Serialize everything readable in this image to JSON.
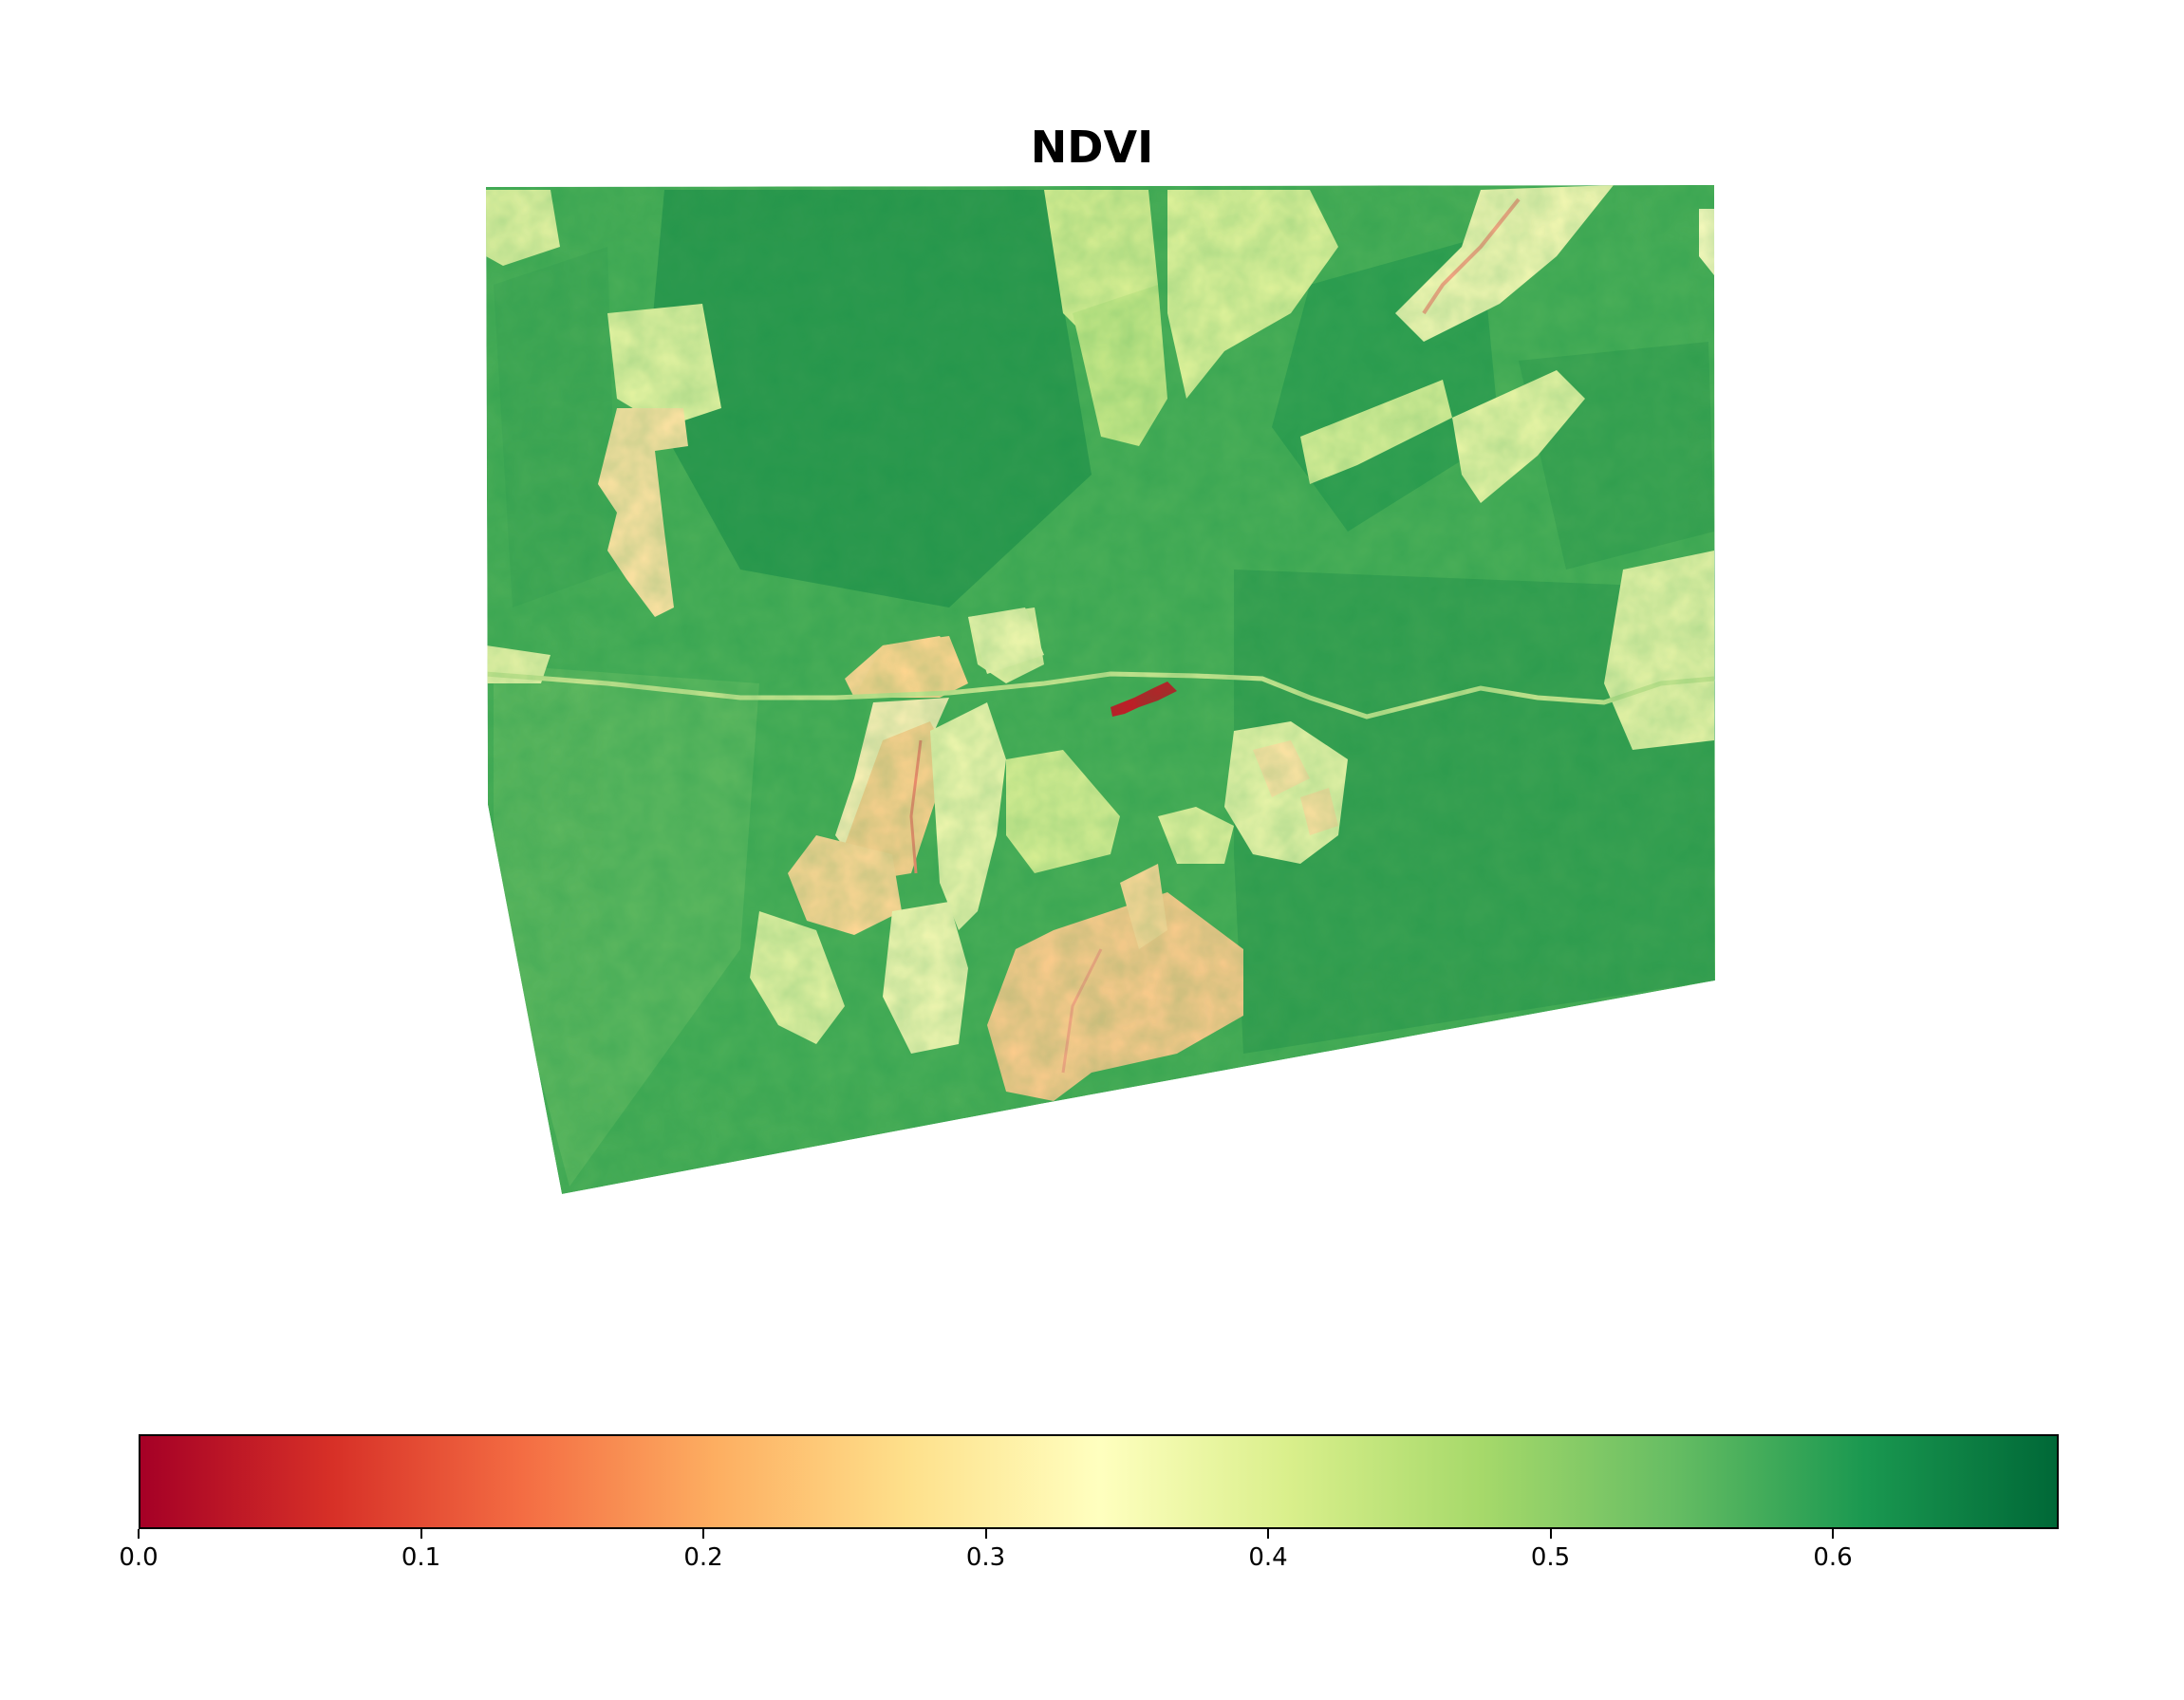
{
  "title": "NDVI",
  "colormap": {
    "name": "RdYlGn",
    "stops": [
      "#a50026",
      "#d73027",
      "#f46d43",
      "#fdae61",
      "#fee08b",
      "#ffffbf",
      "#d9ef8b",
      "#a6d96a",
      "#66bd63",
      "#1a9850",
      "#006837"
    ]
  },
  "colorbar": {
    "range": [
      0.0,
      0.68
    ],
    "ticks": [
      "0.0",
      "0.1",
      "0.2",
      "0.3",
      "0.4",
      "0.5",
      "0.6"
    ]
  },
  "map": {
    "background_ndvi": 0.55
  }
}
